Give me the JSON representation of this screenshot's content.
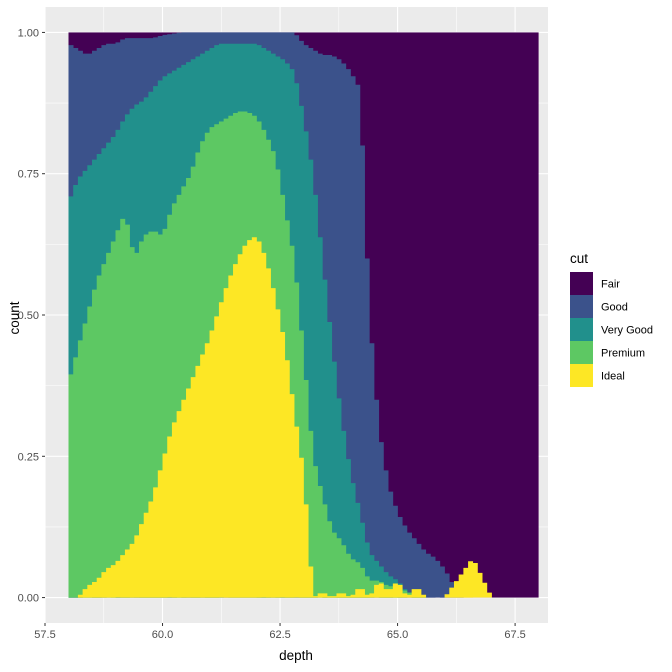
{
  "chart_data": {
    "type": "bar",
    "subtype": "histogram-position-fill",
    "xlabel": "depth",
    "ylabel": "count",
    "xlim": [
      57.5,
      68.2
    ],
    "ylim": [
      -0.045,
      1.045
    ],
    "x_ticks": [
      57.5,
      60.0,
      62.5,
      65.0,
      67.5
    ],
    "x_tick_labels": [
      "57.5",
      "60.0",
      "62.5",
      "65.0",
      "67.5"
    ],
    "y_ticks": [
      0,
      0.25,
      0.5,
      0.75,
      1.0
    ],
    "y_tick_labels": [
      "0.00",
      "0.25",
      "0.50",
      "0.75",
      "1.00"
    ],
    "grid": true,
    "panel_background": "#ebebeb",
    "legend": {
      "title": "cut",
      "position": "right",
      "entries": [
        {
          "label": "Fair",
          "color": "#440154"
        },
        {
          "label": "Good",
          "color": "#3b528b"
        },
        {
          "label": "Very Good",
          "color": "#21908c"
        },
        {
          "label": "Premium",
          "color": "#5dc863"
        },
        {
          "label": "Ideal",
          "color": "#fde725"
        }
      ]
    },
    "bin_width": 0.1,
    "depth_range": [
      58.0,
      68.0
    ],
    "notes_stacking": "values are cumulative top-of-band proportions from bottom: Ideal, Premium, Very Good, Good; Fair fills to 1.0",
    "series": [
      {
        "name": "Ideal",
        "values": [
          [
            58.0,
            0.0
          ],
          [
            58.2,
            0.0
          ],
          [
            58.4,
            0.02
          ],
          [
            58.6,
            0.03
          ],
          [
            58.8,
            0.05
          ],
          [
            59.0,
            0.06
          ],
          [
            59.2,
            0.08
          ],
          [
            59.4,
            0.1
          ],
          [
            59.6,
            0.14
          ],
          [
            59.8,
            0.18
          ],
          [
            60.0,
            0.24
          ],
          [
            60.2,
            0.3
          ],
          [
            60.4,
            0.34
          ],
          [
            60.6,
            0.38
          ],
          [
            60.8,
            0.42
          ],
          [
            61.0,
            0.46
          ],
          [
            61.2,
            0.51
          ],
          [
            61.4,
            0.56
          ],
          [
            61.6,
            0.6
          ],
          [
            61.8,
            0.63
          ],
          [
            62.0,
            0.64
          ],
          [
            62.2,
            0.6
          ],
          [
            62.4,
            0.53
          ],
          [
            62.6,
            0.45
          ],
          [
            62.8,
            0.33
          ],
          [
            63.0,
            0.22
          ],
          [
            63.2,
            0.0
          ],
          [
            63.4,
            0.01
          ],
          [
            63.6,
            0.0
          ],
          [
            63.8,
            0.01
          ],
          [
            64.0,
            0.0
          ],
          [
            64.2,
            0.02
          ],
          [
            64.4,
            0.0
          ],
          [
            64.6,
            0.03
          ],
          [
            64.8,
            0.01
          ],
          [
            65.0,
            0.03
          ],
          [
            65.2,
            0.0
          ],
          [
            65.4,
            0.02
          ],
          [
            65.6,
            0.0
          ],
          [
            66.0,
            0.0
          ],
          [
            66.6,
            0.07
          ],
          [
            67.0,
            0.0
          ],
          [
            68.0,
            0.0
          ]
        ]
      },
      {
        "name": "Premium",
        "values": [
          [
            58.0,
            0.38
          ],
          [
            58.2,
            0.44
          ],
          [
            58.4,
            0.5
          ],
          [
            58.6,
            0.56
          ],
          [
            58.8,
            0.6
          ],
          [
            59.0,
            0.64
          ],
          [
            59.2,
            0.68
          ],
          [
            59.4,
            0.6
          ],
          [
            59.6,
            0.64
          ],
          [
            59.8,
            0.65
          ],
          [
            60.0,
            0.64
          ],
          [
            60.2,
            0.69
          ],
          [
            60.4,
            0.72
          ],
          [
            60.6,
            0.75
          ],
          [
            60.8,
            0.8
          ],
          [
            61.0,
            0.83
          ],
          [
            61.2,
            0.84
          ],
          [
            61.4,
            0.85
          ],
          [
            61.6,
            0.86
          ],
          [
            61.8,
            0.86
          ],
          [
            62.0,
            0.85
          ],
          [
            62.2,
            0.82
          ],
          [
            62.4,
            0.78
          ],
          [
            62.6,
            0.69
          ],
          [
            62.8,
            0.6
          ],
          [
            63.0,
            0.43
          ],
          [
            63.2,
            0.25
          ],
          [
            63.4,
            0.18
          ],
          [
            63.6,
            0.12
          ],
          [
            63.8,
            0.1
          ],
          [
            64.0,
            0.07
          ],
          [
            64.2,
            0.06
          ],
          [
            64.4,
            0.03
          ],
          [
            64.6,
            0.03
          ],
          [
            64.8,
            0.02
          ],
          [
            65.0,
            0.02
          ],
          [
            65.2,
            0.01
          ],
          [
            65.6,
            0.0
          ],
          [
            68.0,
            0.0
          ]
        ]
      },
      {
        "name": "Very Good",
        "values": [
          [
            58.0,
            0.7
          ],
          [
            58.2,
            0.74
          ],
          [
            58.4,
            0.76
          ],
          [
            58.6,
            0.78
          ],
          [
            58.8,
            0.8
          ],
          [
            59.0,
            0.82
          ],
          [
            59.2,
            0.85
          ],
          [
            59.4,
            0.87
          ],
          [
            59.6,
            0.88
          ],
          [
            59.8,
            0.9
          ],
          [
            60.0,
            0.92
          ],
          [
            60.2,
            0.93
          ],
          [
            60.4,
            0.94
          ],
          [
            60.6,
            0.95
          ],
          [
            60.8,
            0.96
          ],
          [
            61.0,
            0.97
          ],
          [
            61.2,
            0.98
          ],
          [
            61.4,
            0.98
          ],
          [
            61.6,
            0.98
          ],
          [
            61.8,
            0.98
          ],
          [
            62.0,
            0.98
          ],
          [
            62.2,
            0.97
          ],
          [
            62.4,
            0.96
          ],
          [
            62.6,
            0.95
          ],
          [
            62.8,
            0.93
          ],
          [
            63.0,
            0.85
          ],
          [
            63.2,
            0.75
          ],
          [
            63.4,
            0.6
          ],
          [
            63.6,
            0.45
          ],
          [
            63.8,
            0.32
          ],
          [
            64.0,
            0.22
          ],
          [
            64.2,
            0.15
          ],
          [
            64.4,
            0.08
          ],
          [
            64.6,
            0.06
          ],
          [
            64.8,
            0.04
          ],
          [
            65.0,
            0.03
          ],
          [
            65.2,
            0.01
          ],
          [
            65.6,
            0.0
          ],
          [
            68.0,
            0.0
          ]
        ]
      },
      {
        "name": "Good",
        "values": [
          [
            58.0,
            0.98
          ],
          [
            58.2,
            0.97
          ],
          [
            58.4,
            0.96
          ],
          [
            58.6,
            0.97
          ],
          [
            58.8,
            0.98
          ],
          [
            59.0,
            0.98
          ],
          [
            59.2,
            0.99
          ],
          [
            59.4,
            0.99
          ],
          [
            59.6,
            0.99
          ],
          [
            59.8,
            0.99
          ],
          [
            60.0,
            0.995
          ],
          [
            60.4,
            1.0
          ],
          [
            61.0,
            1.0
          ],
          [
            62.0,
            1.0
          ],
          [
            62.8,
            1.0
          ],
          [
            63.0,
            0.98
          ],
          [
            63.2,
            0.97
          ],
          [
            63.4,
            0.96
          ],
          [
            63.6,
            0.96
          ],
          [
            63.8,
            0.95
          ],
          [
            64.0,
            0.93
          ],
          [
            64.2,
            0.9
          ],
          [
            64.4,
            0.5
          ],
          [
            64.6,
            0.3
          ],
          [
            64.8,
            0.2
          ],
          [
            65.0,
            0.15
          ],
          [
            65.2,
            0.12
          ],
          [
            65.4,
            0.1
          ],
          [
            65.6,
            0.08
          ],
          [
            65.8,
            0.07
          ],
          [
            66.0,
            0.05
          ],
          [
            66.2,
            0.02
          ],
          [
            66.4,
            0.0
          ],
          [
            68.0,
            0.0
          ]
        ]
      }
    ]
  }
}
